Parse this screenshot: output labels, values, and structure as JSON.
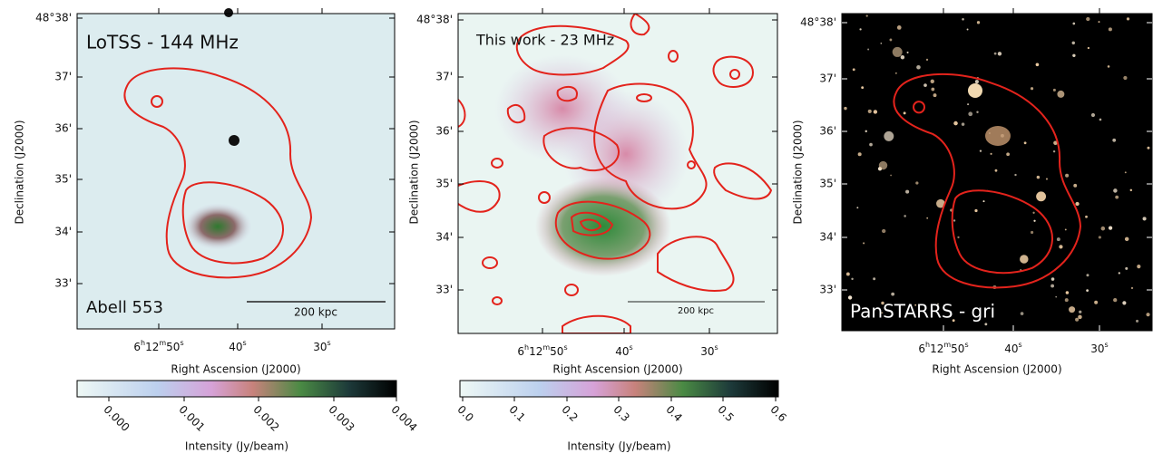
{
  "panels": [
    {
      "label": "LoTSS - 144 MHz",
      "sublabel": "Abell 553",
      "scalebar": "200 kpc",
      "yticks": [
        "48°38'",
        "37'",
        "36'",
        "35'",
        "34'",
        "33'"
      ],
      "xticks": [
        [
          "6",
          "h",
          "12",
          "m",
          "50",
          "s"
        ],
        [
          "40",
          "s"
        ],
        [
          "30",
          "s"
        ]
      ],
      "xlabel": "Right Ascension (J2000)",
      "ylabel": "Declination (J2000)",
      "colorbar": {
        "ticks": [
          "0.000",
          "0.001",
          "0.002",
          "0.003",
          "0.004"
        ],
        "label": "Intensity (Jy/beam)"
      }
    },
    {
      "label": "This work - 23 MHz",
      "scalebar": "200 kpc",
      "yticks": [
        "48°38'",
        "37'",
        "36'",
        "35'",
        "34'",
        "33'"
      ],
      "xticks": [
        [
          "6",
          "h",
          "12",
          "m",
          "50",
          "s"
        ],
        [
          "40",
          "s"
        ],
        [
          "30",
          "s"
        ]
      ],
      "xlabel": "Right Ascension (J2000)",
      "ylabel": "Declination (J2000)",
      "colorbar": {
        "ticks": [
          "0.0",
          "0.1",
          "0.2",
          "0.3",
          "0.4",
          "0.5",
          "0.6"
        ],
        "label": "Intensity (Jy/beam)"
      }
    },
    {
      "label": "PanSTARRS - gri",
      "yticks": [
        "48°38'",
        "37'",
        "36'",
        "35'",
        "34'",
        "33'"
      ],
      "xticks": [
        [
          "6",
          "h",
          "12",
          "m",
          "50",
          "s"
        ],
        [
          "40",
          "s"
        ],
        [
          "30",
          "s"
        ]
      ],
      "xlabel": "Right Ascension (J2000)",
      "ylabel": "Declination (J2000)"
    }
  ]
}
